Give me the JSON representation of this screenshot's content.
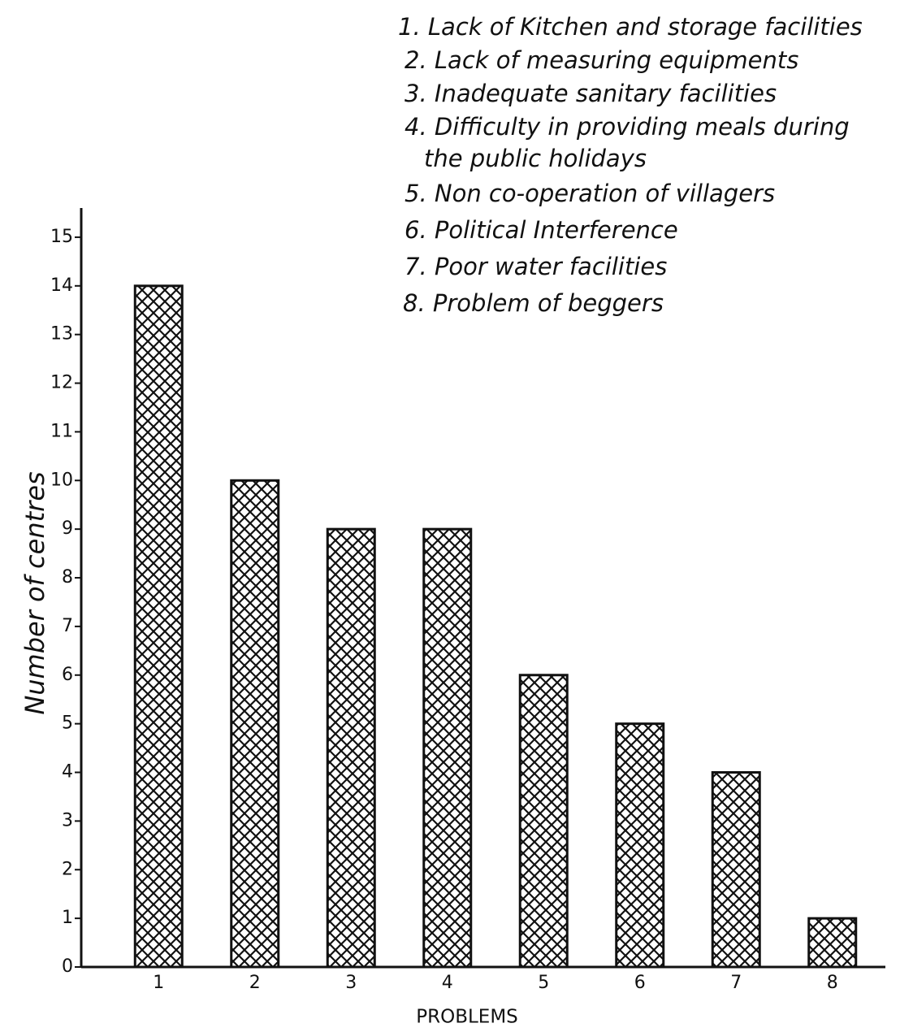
{
  "chart_data": {
    "type": "bar",
    "categories": [
      "1",
      "2",
      "3",
      "4",
      "5",
      "6",
      "7",
      "8"
    ],
    "values": [
      14,
      10,
      9,
      9,
      6,
      5,
      4,
      1
    ],
    "color": "#111111",
    "ylim": [
      0,
      15.6
    ],
    "yticks": [
      0,
      1,
      2,
      3,
      4,
      5,
      6,
      7,
      8,
      9,
      10,
      11,
      12,
      13,
      14,
      15
    ],
    "grid": false,
    "x_label": "PROBLEMS",
    "y_label": "Number of centres",
    "annotations": [
      "1. Lack of Kitchen and storage facilities",
      "2. Lack of measuring equipments",
      "3. Inadequate sanitary facilities",
      "4. Difficulty in providing meals during",
      "the public holidays",
      "5. Non co-operation of villagers",
      "6. Political Interference",
      "7. Poor water facilities",
      "8. Problem of beggers"
    ]
  }
}
